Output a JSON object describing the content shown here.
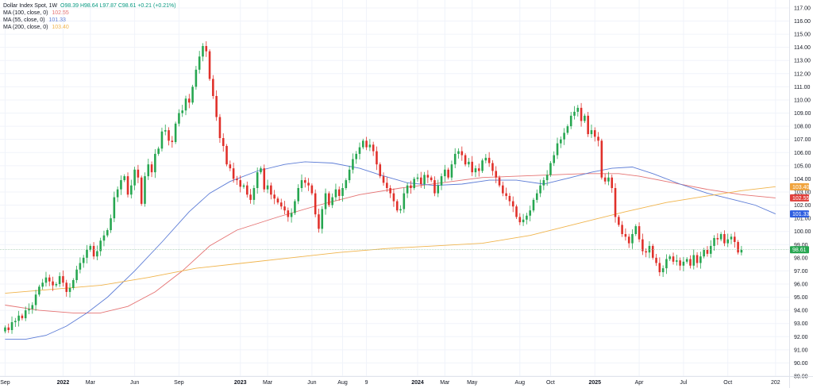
{
  "legend": {
    "title": "Dollar Index Spot, 1W",
    "ohlc": "O98.39 H98.64 L97.87 C98.61 +0.21 (+0.21%)",
    "ma": [
      {
        "label": "MA (100, close, 0)",
        "value": "102.55",
        "color": "#e57373"
      },
      {
        "label": "MA (55, close, 0)",
        "value": "101.33",
        "color": "#5c7cd6"
      },
      {
        "label": "MA (200, close, 0)",
        "value": "103.40",
        "color": "#f0b44c"
      }
    ]
  },
  "price_labels": [
    {
      "text": "103.40",
      "value": 103.4,
      "color": "#f0a33c"
    },
    {
      "text": "102.55",
      "value": 102.55,
      "color": "#e0403c"
    },
    {
      "text": "101.33",
      "value": 101.33,
      "color": "#2f5fe0"
    },
    {
      "text": "98.61",
      "value": 98.61,
      "color": "#26a650"
    }
  ],
  "chart_data": {
    "type": "candlestick",
    "ylim": [
      89,
      117.6
    ],
    "y_ticks": [
      "117.00",
      "116.00",
      "115.00",
      "114.00",
      "113.00",
      "112.00",
      "111.00",
      "110.00",
      "109.00",
      "108.00",
      "107.00",
      "106.00",
      "105.00",
      "104.00",
      "103.00",
      "102.00",
      "101.00",
      "100.00",
      "99.00",
      "98.00",
      "97.00",
      "96.00",
      "95.00",
      "94.00",
      "93.00",
      "92.00",
      "91.00",
      "90.00",
      "89.00"
    ],
    "x_ticks": [
      {
        "label": "Sep",
        "week": 0,
        "bold": false
      },
      {
        "label": "2022",
        "week": 17,
        "bold": true
      },
      {
        "label": "Mar",
        "week": 25,
        "bold": false
      },
      {
        "label": "Jun",
        "week": 38,
        "bold": false
      },
      {
        "label": "Sep",
        "week": 51,
        "bold": false
      },
      {
        "label": "2023",
        "week": 69,
        "bold": true
      },
      {
        "label": "Mar",
        "week": 77,
        "bold": false
      },
      {
        "label": "Jun",
        "week": 90,
        "bold": false
      },
      {
        "label": "Aug",
        "week": 99,
        "bold": false
      },
      {
        "label": "9",
        "week": 106,
        "bold": false
      },
      {
        "label": "2024",
        "week": 121,
        "bold": true
      },
      {
        "label": "Mar",
        "week": 129,
        "bold": false
      },
      {
        "label": "May",
        "week": 137,
        "bold": false
      },
      {
        "label": "Aug",
        "week": 151,
        "bold": false
      },
      {
        "label": "Oct",
        "week": 160,
        "bold": false
      },
      {
        "label": "2025",
        "week": 173,
        "bold": true
      },
      {
        "label": "Apr",
        "week": 186,
        "bold": false
      },
      {
        "label": "Jul",
        "week": 199,
        "bold": false
      },
      {
        "label": "Oct",
        "week": 212,
        "bold": false
      },
      {
        "label": "202",
        "week": 226,
        "bold": false
      }
    ],
    "close": [
      92.7,
      92.5,
      93.1,
      93.2,
      93.6,
      93.4,
      94.0,
      94.1,
      94.4,
      95.2,
      95.8,
      96.1,
      96.5,
      96.2,
      95.9,
      96.0,
      96.6,
      96.1,
      95.4,
      95.7,
      96.3,
      97.1,
      97.6,
      98.0,
      98.6,
      98.9,
      98.1,
      98.5,
      99.3,
      99.7,
      100.1,
      101.0,
      102.6,
      103.2,
      103.9,
      104.2,
      102.8,
      103.5,
      104.7,
      104.1,
      102.1,
      104.2,
      105.1,
      104.5,
      105.9,
      106.3,
      107.6,
      107.7,
      106.9,
      106.8,
      108.2,
      109.0,
      109.2,
      110.1,
      109.8,
      111.0,
      112.3,
      113.3,
      114.1,
      113.7,
      111.6,
      110.3,
      108.7,
      107.1,
      106.5,
      105.1,
      104.8,
      104.0,
      103.9,
      103.4,
      103.5,
      102.8,
      102.4,
      103.3,
      104.5,
      104.8,
      103.2,
      103.5,
      102.8,
      102.5,
      102.2,
      101.9,
      101.6,
      101.1,
      101.4,
      102.3,
      103.3,
      103.9,
      103.7,
      103.5,
      102.9,
      101.3,
      100.2,
      101.7,
      102.9,
      102.0,
      102.6,
      103.2,
      102.7,
      103.3,
      103.9,
      104.7,
      105.5,
      105.9,
      106.4,
      106.9,
      106.4,
      106.6,
      106.1,
      105.1,
      104.2,
      103.7,
      103.3,
      102.9,
      102.3,
      101.6,
      101.7,
      102.9,
      103.5,
      103.3,
      104.0,
      104.1,
      103.6,
      104.3,
      104.1,
      103.9,
      102.9,
      103.5,
      104.2,
      104.7,
      104.1,
      105.1,
      105.9,
      106.1,
      105.8,
      105.1,
      105.3,
      104.5,
      104.8,
      104.6,
      105.4,
      105.6,
      105.2,
      104.6,
      104.1,
      103.5,
      102.9,
      102.7,
      102.3,
      101.9,
      101.1,
      100.7,
      100.9,
      101.2,
      101.6,
      102.4,
      102.9,
      103.5,
      103.9,
      104.3,
      105.2,
      105.8,
      106.7,
      107.0,
      107.5,
      108.0,
      108.8,
      109.1,
      109.4,
      108.4,
      108.8,
      107.4,
      107.7,
      107.2,
      106.9,
      104.1,
      103.8,
      104.1,
      103.3,
      101.1,
      100.5,
      99.8,
      99.6,
      99.1,
      99.8,
      100.4,
      99.4,
      98.5,
      98.4,
      98.9,
      98.0,
      97.6,
      96.9,
      97.2,
      97.9,
      98.1,
      97.7,
      97.8,
      97.4,
      97.7,
      97.9,
      97.4,
      98.2,
      97.6,
      98.1,
      98.6,
      98.3,
      98.9,
      99.5,
      99.4,
      99.8,
      99.1,
      99.4,
      99.6,
      99.2,
      98.4,
      98.61
    ],
    "ma": [
      {
        "name": "MA (100, close, 0)",
        "color": "#e57373",
        "points": [
          [
            0,
            94.4
          ],
          [
            10,
            94.0
          ],
          [
            20,
            93.8
          ],
          [
            28,
            93.8
          ],
          [
            36,
            94.3
          ],
          [
            44,
            95.4
          ],
          [
            52,
            97.0
          ],
          [
            60,
            98.9
          ],
          [
            68,
            100.1
          ],
          [
            80,
            101.1
          ],
          [
            92,
            102.0
          ],
          [
            104,
            102.8
          ],
          [
            116,
            103.3
          ],
          [
            128,
            103.7
          ],
          [
            140,
            104.1
          ],
          [
            150,
            104.2
          ],
          [
            160,
            104.3
          ],
          [
            170,
            104.4
          ],
          [
            180,
            104.4
          ],
          [
            186,
            104.2
          ],
          [
            196,
            103.7
          ],
          [
            206,
            103.2
          ],
          [
            216,
            102.8
          ],
          [
            226,
            102.55
          ]
        ]
      },
      {
        "name": "MA (55, close, 0)",
        "color": "#5c7cd6",
        "points": [
          [
            0,
            91.8
          ],
          [
            6,
            91.8
          ],
          [
            12,
            92.1
          ],
          [
            18,
            92.8
          ],
          [
            24,
            93.8
          ],
          [
            30,
            95.0
          ],
          [
            38,
            97.0
          ],
          [
            46,
            99.2
          ],
          [
            54,
            101.5
          ],
          [
            60,
            102.9
          ],
          [
            66,
            103.8
          ],
          [
            74,
            104.6
          ],
          [
            82,
            105.1
          ],
          [
            88,
            105.3
          ],
          [
            96,
            105.2
          ],
          [
            104,
            104.8
          ],
          [
            110,
            104.3
          ],
          [
            118,
            103.7
          ],
          [
            126,
            103.5
          ],
          [
            134,
            103.6
          ],
          [
            142,
            103.9
          ],
          [
            150,
            103.9
          ],
          [
            158,
            103.6
          ],
          [
            166,
            104.1
          ],
          [
            172,
            104.5
          ],
          [
            178,
            104.8
          ],
          [
            184,
            104.9
          ],
          [
            190,
            104.4
          ],
          [
            198,
            103.6
          ],
          [
            206,
            102.9
          ],
          [
            214,
            102.4
          ],
          [
            220,
            102.0
          ],
          [
            226,
            101.33
          ]
        ]
      },
      {
        "name": "MA (200, close, 0)",
        "color": "#f0b44c",
        "points": [
          [
            0,
            95.3
          ],
          [
            14,
            95.6
          ],
          [
            28,
            95.9
          ],
          [
            42,
            96.5
          ],
          [
            56,
            97.2
          ],
          [
            70,
            97.6
          ],
          [
            84,
            98.0
          ],
          [
            98,
            98.4
          ],
          [
            112,
            98.7
          ],
          [
            126,
            98.9
          ],
          [
            140,
            99.1
          ],
          [
            154,
            99.7
          ],
          [
            168,
            100.6
          ],
          [
            182,
            101.5
          ],
          [
            194,
            102.2
          ],
          [
            206,
            102.7
          ],
          [
            216,
            103.1
          ],
          [
            226,
            103.4
          ]
        ]
      }
    ]
  }
}
